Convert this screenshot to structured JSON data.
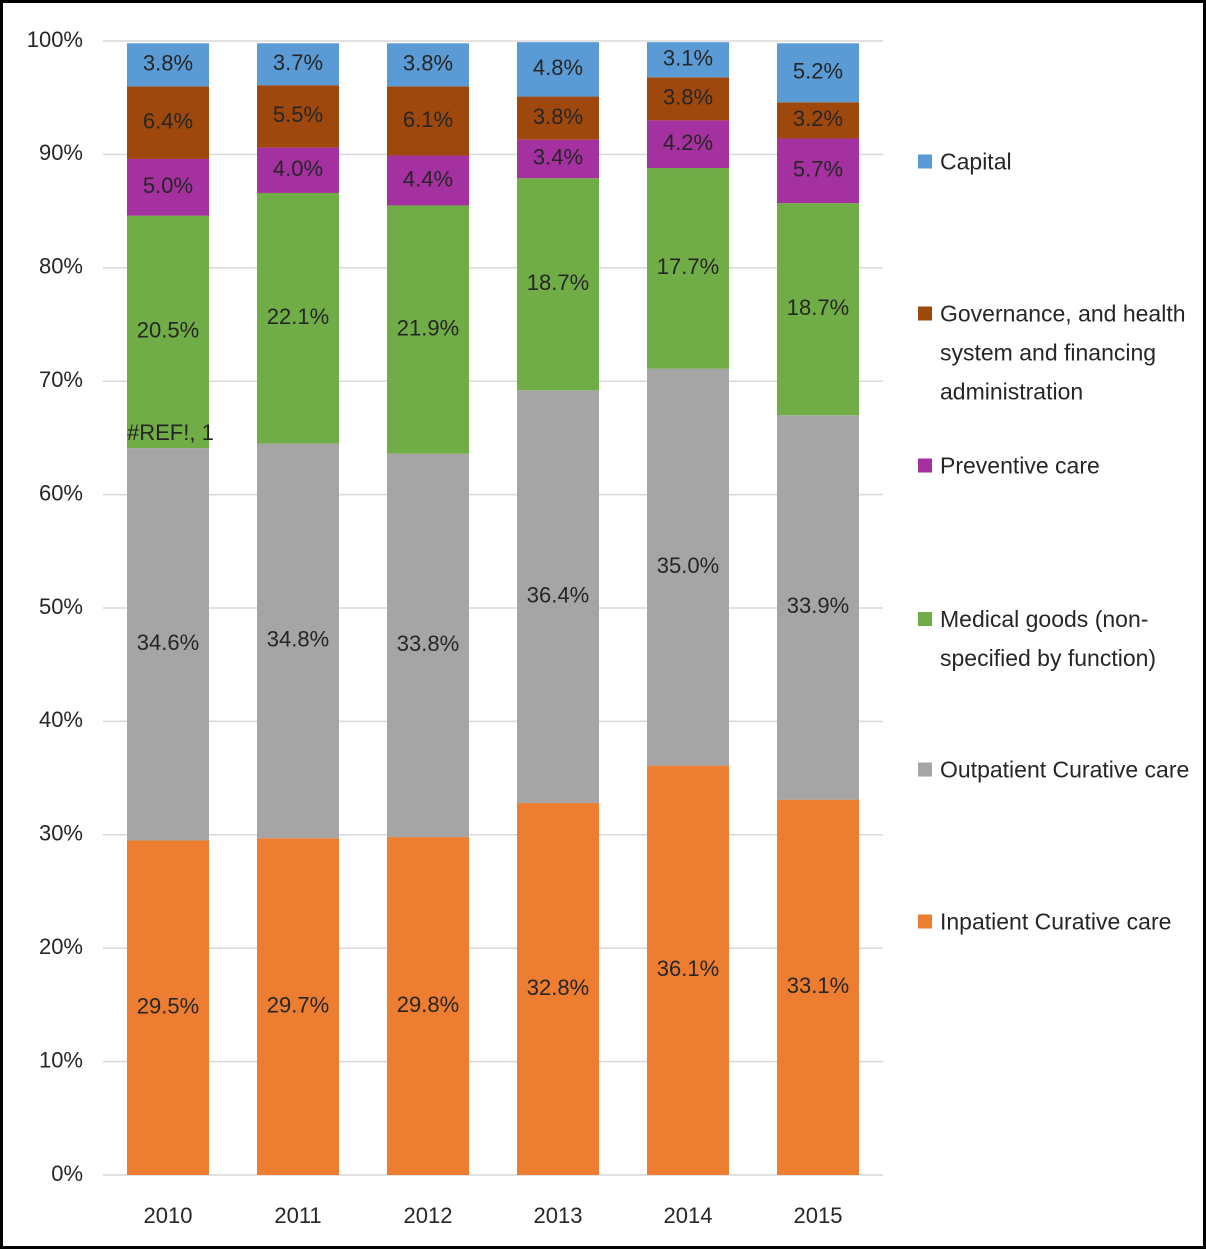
{
  "chart_data": {
    "type": "stacked_bar",
    "categories": [
      "2010",
      "2011",
      "2012",
      "2013",
      "2014",
      "2015"
    ],
    "series": [
      {
        "name": "Inpatient Curative care",
        "color": "#ed7d31",
        "values": [
          29.5,
          29.7,
          29.8,
          32.8,
          36.1,
          33.1
        ],
        "value_labels": [
          "29.5%",
          "29.7%",
          "29.8%",
          "32.8%",
          "36.1%",
          "33.1%"
        ]
      },
      {
        "name": "Outpatient Curative care",
        "color": "#a5a5a5",
        "values": [
          34.6,
          34.8,
          33.8,
          36.4,
          35.0,
          33.9
        ],
        "value_labels": [
          "34.6%",
          "34.8%",
          "33.8%",
          "36.4%",
          "35.0%",
          "33.9%"
        ]
      },
      {
        "name": "Medical goods (non-specified by function)",
        "color": "#70ad47",
        "values": [
          20.5,
          22.1,
          21.9,
          18.7,
          17.7,
          18.7
        ],
        "value_labels": [
          "20.5%",
          "22.1%",
          "21.9%",
          "18.7%",
          "17.7%",
          "18.7%"
        ]
      },
      {
        "name": "Preventive care",
        "color": "#a5309f",
        "values": [
          5.0,
          4.0,
          4.4,
          3.4,
          4.2,
          5.7
        ],
        "value_labels": [
          "5.0%",
          "4.0%",
          "4.4%",
          "3.4%",
          "4.2%",
          "5.7%"
        ]
      },
      {
        "name": "Governance, and health system and financing administration",
        "color": "#9e480e",
        "values": [
          6.4,
          5.5,
          6.1,
          3.8,
          3.8,
          3.2
        ],
        "value_labels": [
          "6.4%",
          "5.5%",
          "6.1%",
          "3.8%",
          "3.8%",
          "3.2%"
        ]
      },
      {
        "name": "Capital",
        "color": "#5b9bd5",
        "values": [
          3.8,
          3.7,
          3.8,
          4.8,
          3.1,
          5.2
        ],
        "value_labels": [
          "3.8%",
          "3.7%",
          "3.8%",
          "4.8%",
          "3.1%",
          "5.2%"
        ]
      }
    ],
    "annotations": [
      "#REF!, 1"
    ],
    "ylim": [
      0,
      100
    ],
    "yticks": [
      {
        "value": 0,
        "label": "0%"
      },
      {
        "value": 10,
        "label": "10%"
      },
      {
        "value": 20,
        "label": "20%"
      },
      {
        "value": 30,
        "label": "30%"
      },
      {
        "value": 40,
        "label": "40%"
      },
      {
        "value": 50,
        "label": "50%"
      },
      {
        "value": 60,
        "label": "60%"
      },
      {
        "value": 70,
        "label": "70%"
      },
      {
        "value": 80,
        "label": "80%"
      },
      {
        "value": 90,
        "label": "90%"
      },
      {
        "value": 100,
        "label": "100%"
      }
    ],
    "grid": true,
    "legend": "right"
  }
}
